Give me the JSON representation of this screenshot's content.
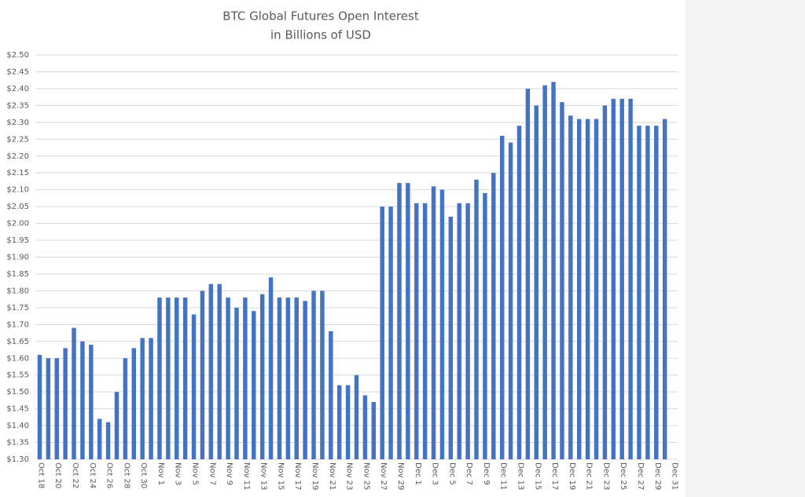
{
  "chart_data": {
    "type": "bar",
    "title": "BTC Global Futures Open Interest",
    "subtitle": "in Billions of USD",
    "color": "#4472c4",
    "grid": true,
    "categories": [
      "Oct 18",
      null,
      "Oct 20",
      null,
      "Oct 22",
      null,
      "Oct 24",
      null,
      "Oct 26",
      null,
      "Oct 28",
      null,
      "Oct 30",
      null,
      "Nov 1",
      null,
      "Nov 3",
      null,
      "Nov 5",
      null,
      "Nov 7",
      null,
      "Nov 9",
      null,
      "Nov 11",
      null,
      "Nov 13",
      null,
      "Nov 15",
      null,
      "Nov 17",
      null,
      "Nov 19",
      null,
      "Nov 21",
      null,
      "Nov 23",
      null,
      "Nov 25",
      null,
      "Nov 27",
      null,
      "Nov 29",
      null,
      "Dec 1",
      null,
      "Dec 3",
      null,
      "Dec 5",
      null,
      "Dec 7",
      null,
      "Dec 9",
      null,
      "Dec 11",
      null,
      "Dec 13",
      null,
      "Dec 15",
      null,
      "Dec 17",
      null,
      "Dec 19",
      null,
      "Dec 21",
      null,
      "Dec 23",
      null,
      "Dec 25",
      null,
      "Dec 27",
      null,
      "Dec 29",
      null,
      "Dec 31"
    ],
    "values": [
      1.61,
      1.6,
      1.6,
      1.63,
      1.69,
      1.65,
      1.64,
      1.42,
      1.41,
      1.5,
      1.6,
      1.63,
      1.66,
      1.66,
      1.78,
      1.78,
      1.78,
      1.78,
      1.73,
      1.8,
      1.82,
      1.82,
      1.78,
      1.75,
      1.78,
      1.74,
      1.79,
      1.84,
      1.78,
      1.78,
      1.78,
      1.77,
      1.8,
      1.8,
      1.68,
      1.52,
      1.52,
      1.55,
      1.49,
      1.47,
      2.05,
      2.05,
      2.12,
      2.12,
      2.06,
      2.06,
      2.11,
      2.1,
      2.02,
      2.06,
      2.06,
      2.13,
      2.09,
      2.15,
      2.26,
      2.24,
      2.29,
      2.4,
      2.35,
      2.41,
      2.42,
      2.36,
      2.32,
      2.31,
      2.31,
      2.31,
      2.35,
      2.37,
      2.37,
      2.37,
      2.29,
      2.29,
      2.29,
      2.31,
      null
    ],
    "ylim": [
      1.3,
      2.5
    ],
    "yticks": [
      {
        "value": 1.3,
        "label": "$1.30"
      },
      {
        "value": 1.35,
        "label": "$1.35"
      },
      {
        "value": 1.4,
        "label": "$1.40"
      },
      {
        "value": 1.45,
        "label": "$1.45"
      },
      {
        "value": 1.5,
        "label": "$1.50"
      },
      {
        "value": 1.55,
        "label": "$1.55"
      },
      {
        "value": 1.6,
        "label": "$1.60"
      },
      {
        "value": 1.65,
        "label": "$1.65"
      },
      {
        "value": 1.7,
        "label": "$1.70"
      },
      {
        "value": 1.75,
        "label": "$1.75"
      },
      {
        "value": 1.8,
        "label": "$1.80"
      },
      {
        "value": 1.85,
        "label": "$1.85"
      },
      {
        "value": 1.9,
        "label": "$1.90"
      },
      {
        "value": 1.95,
        "label": "$1.95"
      },
      {
        "value": 2.0,
        "label": "$2.00"
      },
      {
        "value": 2.05,
        "label": "$2.05"
      },
      {
        "value": 2.1,
        "label": "$2.10"
      },
      {
        "value": 2.15,
        "label": "$2.15"
      },
      {
        "value": 2.2,
        "label": "$2.20"
      },
      {
        "value": 2.25,
        "label": "$2.25"
      },
      {
        "value": 2.3,
        "label": "$2.30"
      },
      {
        "value": 2.35,
        "label": "$2.35"
      },
      {
        "value": 2.4,
        "label": "$2.40"
      },
      {
        "value": 2.45,
        "label": "$2.45"
      },
      {
        "value": 2.5,
        "label": "$2.50"
      }
    ]
  }
}
